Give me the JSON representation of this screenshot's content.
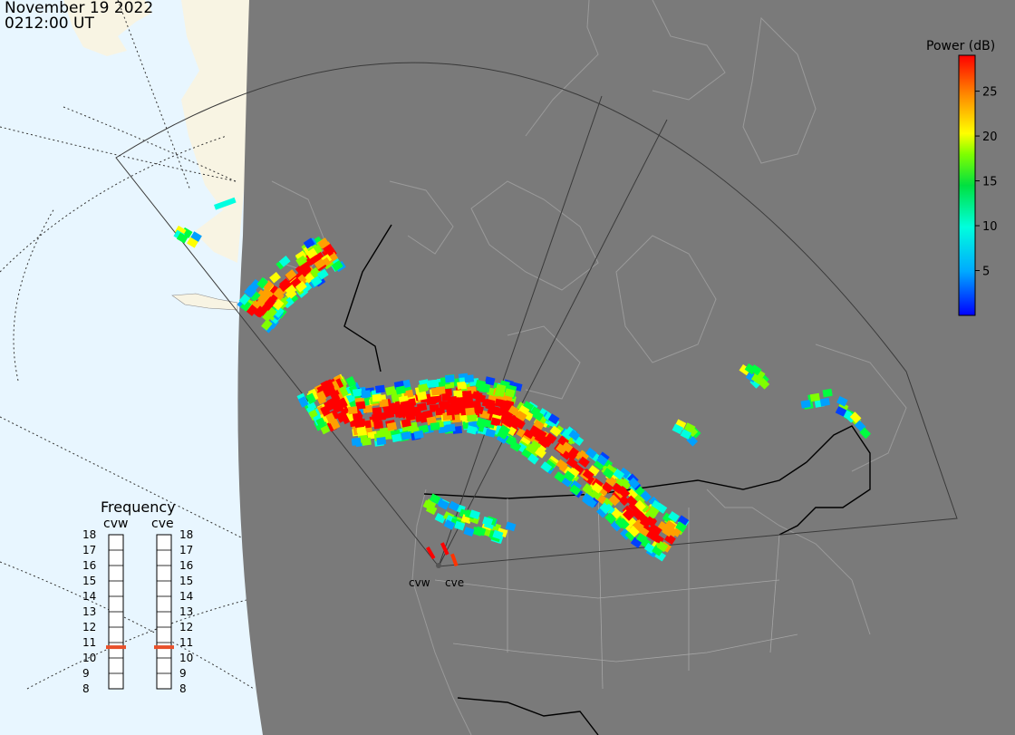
{
  "header": {
    "date": "November 19 2022",
    "time": "0212:00 UT"
  },
  "colors": {
    "ocean": "#e8f6ff",
    "land": "#f8f4e3",
    "dark_side": "#7a7a7a",
    "fov": "#444444",
    "freq_marker": "#e8502a"
  },
  "colorbar": {
    "title": "Power (dB)",
    "min": 0,
    "max": 29,
    "ticks": [
      5,
      10,
      15,
      20,
      25
    ],
    "tick_labels": [
      "5",
      "10",
      "15",
      "20",
      "25"
    ]
  },
  "frequency_panel": {
    "title": "Frequency",
    "radars": [
      {
        "label": "cvw",
        "selected_mhz": 10.7
      },
      {
        "label": "cve",
        "selected_mhz": 10.7
      }
    ],
    "scale_min": 8,
    "scale_max": 18,
    "scale_labels": [
      "18",
      "17",
      "16",
      "15",
      "14",
      "13",
      "12",
      "11",
      "10",
      "9",
      "8"
    ]
  },
  "radar_sites": [
    {
      "label": "cvw"
    },
    {
      "label": "cve"
    }
  ]
}
